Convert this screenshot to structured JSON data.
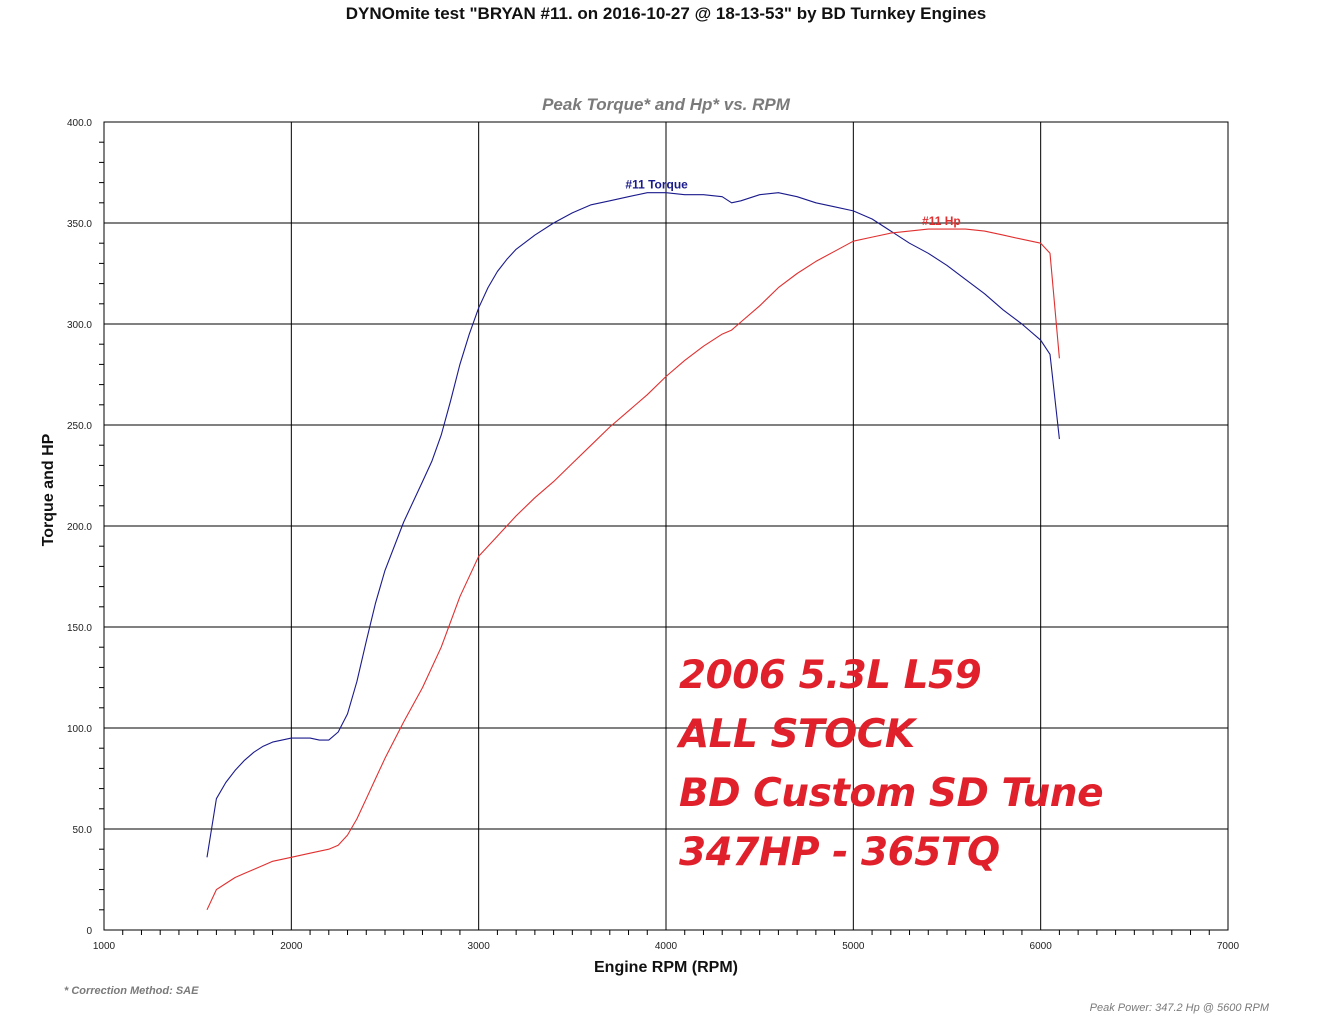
{
  "title": "DYNOmite test \"BRYAN #11. on 2016-10-27 @ 18-13-53\" by BD Turnkey Engines",
  "footnote": "* Correction Method: SAE",
  "peak_power": "Peak Power: 347.2 Hp @ 5600 RPM",
  "overlay": {
    "line1": "2006 5.3L L59",
    "line2": "ALL STOCK",
    "line3": "BD Custom SD Tune",
    "line4": "347HP - 365TQ"
  },
  "colors": {
    "torque": "#1a1a8c",
    "hp": "#e03030",
    "overlay": "#e0202a",
    "grid": "#000000"
  },
  "chart_data": {
    "type": "line",
    "title": "Peak Torque* and Hp* vs. RPM",
    "xlabel": "Engine RPM (RPM)",
    "ylabel": "Torque and HP",
    "xlim": [
      1000,
      7000
    ],
    "ylim": [
      0,
      400
    ],
    "x_ticks": [
      "1000",
      "2000",
      "3000",
      "4000",
      "5000",
      "6000",
      "7000"
    ],
    "y_ticks": [
      "0",
      "50.0",
      "100.0",
      "150.0",
      "200.0",
      "250.0",
      "300.0",
      "350.0",
      "400.0"
    ],
    "grid": true,
    "series": [
      {
        "name": "#11 Torque",
        "x": [
          1550,
          1600,
          1650,
          1700,
          1750,
          1800,
          1850,
          1900,
          1950,
          2000,
          2050,
          2100,
          2150,
          2200,
          2250,
          2300,
          2350,
          2400,
          2450,
          2500,
          2600,
          2700,
          2750,
          2800,
          2850,
          2900,
          2950,
          3000,
          3050,
          3100,
          3150,
          3200,
          3300,
          3400,
          3500,
          3600,
          3700,
          3800,
          3900,
          4000,
          4100,
          4200,
          4300,
          4350,
          4400,
          4500,
          4600,
          4700,
          4800,
          4900,
          5000,
          5100,
          5200,
          5300,
          5400,
          5500,
          5600,
          5700,
          5800,
          5900,
          6000,
          6050,
          6100
        ],
        "y": [
          36,
          65,
          73,
          79,
          84,
          88,
          91,
          93,
          94,
          95,
          95,
          95,
          94,
          94,
          98,
          107,
          123,
          143,
          162,
          178,
          202,
          222,
          232,
          245,
          262,
          280,
          295,
          308,
          318,
          326,
          332,
          337,
          344,
          350,
          355,
          359,
          361,
          363,
          365,
          365,
          364,
          364,
          363,
          360,
          361,
          364,
          365,
          363,
          360,
          358,
          356,
          352,
          346,
          340,
          335,
          329,
          322,
          315,
          307,
          300,
          292,
          285,
          243
        ]
      },
      {
        "name": "#11 Hp",
        "x": [
          1550,
          1600,
          1650,
          1700,
          1750,
          1800,
          1850,
          1900,
          1950,
          2000,
          2100,
          2200,
          2250,
          2300,
          2350,
          2400,
          2450,
          2500,
          2600,
          2700,
          2800,
          2900,
          3000,
          3100,
          3200,
          3300,
          3400,
          3500,
          3600,
          3700,
          3800,
          3900,
          4000,
          4100,
          4200,
          4300,
          4350,
          4400,
          4500,
          4600,
          4700,
          4800,
          4900,
          5000,
          5100,
          5200,
          5300,
          5400,
          5500,
          5600,
          5700,
          5800,
          5900,
          6000,
          6050,
          6100
        ],
        "y": [
          10,
          20,
          23,
          26,
          28,
          30,
          32,
          34,
          35,
          36,
          38,
          40,
          42,
          47,
          55,
          65,
          75,
          85,
          103,
          120,
          140,
          165,
          185,
          195,
          205,
          214,
          222,
          231,
          240,
          249,
          257,
          265,
          274,
          282,
          289,
          295,
          297,
          301,
          309,
          318,
          325,
          331,
          336,
          341,
          343,
          345,
          346,
          347,
          347,
          347,
          346,
          344,
          342,
          340,
          335,
          283
        ]
      }
    ],
    "series_labels": [
      {
        "text": "#11 Torque",
        "x": 3950,
        "y": 367,
        "series": 0
      },
      {
        "text": "#11 Hp",
        "x": 5470,
        "y": 349,
        "series": 1
      }
    ]
  }
}
